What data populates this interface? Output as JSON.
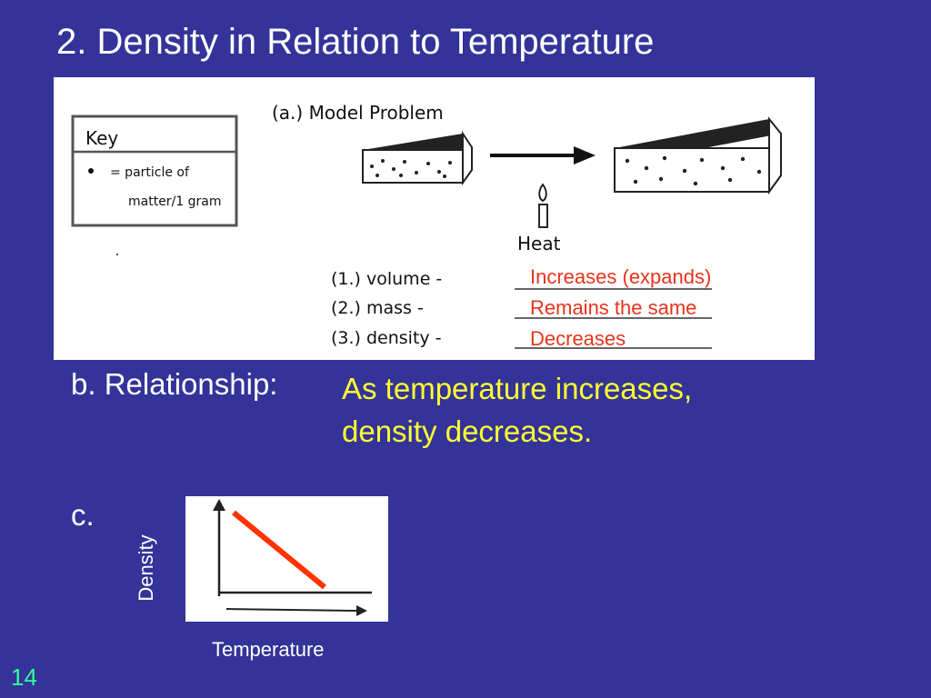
{
  "slide": {
    "title": "2. Density in Relation to Temperature",
    "number": "14"
  },
  "figure": {
    "key_title": "Key",
    "key_line1": "= particle of",
    "key_line2": "matter/1 gram",
    "model_problem": "(a.) Model Problem",
    "heat_label": "Heat",
    "q1": "(1.) volume -",
    "q2": "(2.) mass -",
    "q3": "(3.) density -"
  },
  "answers": {
    "volume": "Increases (expands)",
    "mass": "Remains the same",
    "density": "Decreases"
  },
  "relationship": {
    "label": "b. Relationship:",
    "line1": "As temperature increases,",
    "line2": "density decreases."
  },
  "graph": {
    "label": "c.",
    "y_axis_label": "Density",
    "x_axis_label": "Temperature"
  },
  "colors": {
    "background": "#333399",
    "answer_red": "#e8341c",
    "relationship_yellow": "#ffff33",
    "slide_number_green": "#33ff99"
  }
}
